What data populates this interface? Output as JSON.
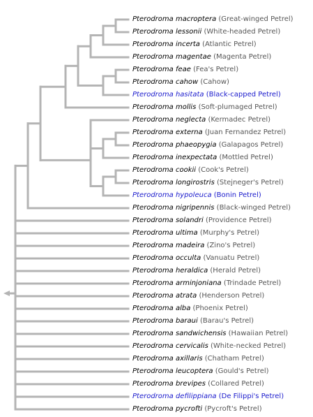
{
  "tree": {
    "line_color": "#b4b4b4",
    "link_color": "#1a1acc",
    "collapse_icon": "left-arrow-icon",
    "leaves": [
      {
        "scientific": "Pterodroma macroptera",
        "common": "(Great-winged Petrel)",
        "link": false
      },
      {
        "scientific": "Pterodroma lessonii",
        "common": "(White-headed Petrel)",
        "link": false
      },
      {
        "scientific": "Pterodroma incerta",
        "common": "(Atlantic Petrel)",
        "link": false
      },
      {
        "scientific": "Pterodroma magentae",
        "common": "(Magenta Petrel)",
        "link": false
      },
      {
        "scientific": "Pterodroma feae",
        "common": "(Fea's Petrel)",
        "link": false
      },
      {
        "scientific": "Pterodroma cahow",
        "common": "(Cahow)",
        "link": false
      },
      {
        "scientific": "Pterodroma hasitata",
        "common": "(Black-capped Petrel)",
        "link": true
      },
      {
        "scientific": "Pterodroma mollis",
        "common": "(Soft-plumaged Petrel)",
        "link": false
      },
      {
        "scientific": "Pterodroma neglecta",
        "common": "(Kermadec Petrel)",
        "link": false
      },
      {
        "scientific": "Pterodroma externa",
        "common": "(Juan Fernandez Petrel)",
        "link": false
      },
      {
        "scientific": "Pterodroma phaeopygia",
        "common": "(Galapagos Petrel)",
        "link": false
      },
      {
        "scientific": "Pterodroma inexpectata",
        "common": "(Mottled Petrel)",
        "link": false
      },
      {
        "scientific": "Pterodroma cookii",
        "common": "(Cook's Petrel)",
        "link": false
      },
      {
        "scientific": "Pterodroma longirostris",
        "common": "(Stejneger's Petrel)",
        "link": false
      },
      {
        "scientific": "Pterodroma hypoleuca",
        "common": "(Bonin Petrel)",
        "link": true
      },
      {
        "scientific": "Pterodroma nigripennis",
        "common": "(Black-winged Petrel)",
        "link": false
      },
      {
        "scientific": "Pterodroma solandri",
        "common": "(Providence Petrel)",
        "link": false
      },
      {
        "scientific": "Pterodroma ultima",
        "common": "(Murphy's Petrel)",
        "link": false
      },
      {
        "scientific": "Pterodroma madeira",
        "common": "(Zino's Petrel)",
        "link": false
      },
      {
        "scientific": "Pterodroma occulta",
        "common": "(Vanuatu Petrel)",
        "link": false
      },
      {
        "scientific": "Pterodroma heraldica",
        "common": "(Herald Petrel)",
        "link": false
      },
      {
        "scientific": "Pterodroma arminjoniana",
        "common": "(Trindade Petrel)",
        "link": false
      },
      {
        "scientific": "Pterodroma atrata",
        "common": "(Henderson Petrel)",
        "link": false
      },
      {
        "scientific": "Pterodroma alba",
        "common": "(Phoenix Petrel)",
        "link": false
      },
      {
        "scientific": "Pterodroma baraui",
        "common": "(Barau's Petrel)",
        "link": false
      },
      {
        "scientific": "Pterodroma sandwichensis",
        "common": "(Hawaiian Petrel)",
        "link": false
      },
      {
        "scientific": "Pterodroma cervicalis",
        "common": "(White-necked Petrel)",
        "link": false
      },
      {
        "scientific": "Pterodroma axillaris",
        "common": "(Chatham Petrel)",
        "link": false
      },
      {
        "scientific": "Pterodroma leucoptera",
        "common": "(Gould's Petrel)",
        "link": false
      },
      {
        "scientific": "Pterodroma brevipes",
        "common": "(Collared Petrel)",
        "link": false
      },
      {
        "scientific": "Pterodroma defilippiana",
        "common": "(De Filippi's Petrel)",
        "link": true
      },
      {
        "scientific": "Pterodroma pycrofti",
        "common": "(Pycroft's Petrel)",
        "link": false
      }
    ]
  }
}
